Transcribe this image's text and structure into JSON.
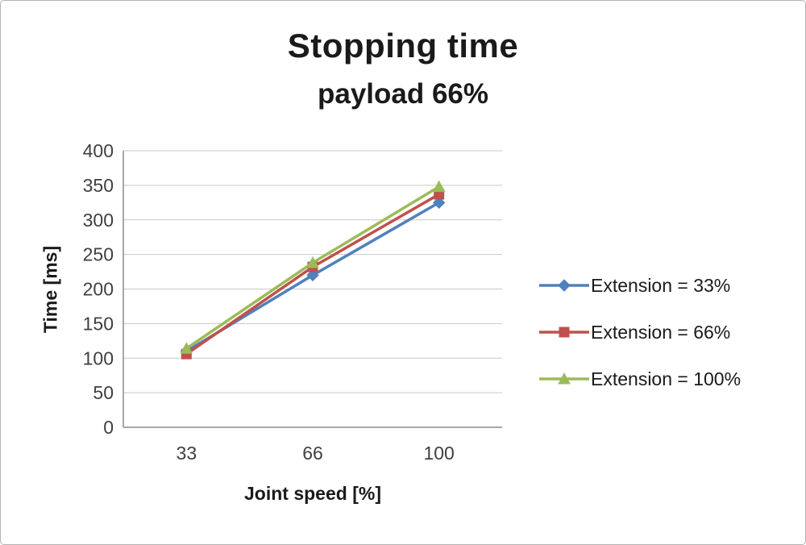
{
  "chart_data": {
    "type": "line",
    "title": "Stopping time",
    "subtitle": "payload 66%",
    "xlabel": "Joint speed [%]",
    "ylabel": "Time [ms]",
    "categories": [
      "33",
      "66",
      "100"
    ],
    "ylim": [
      0,
      400
    ],
    "ytick_step": 50,
    "grid": true,
    "legend_position": "right",
    "series": [
      {
        "name": "Extension = 33%",
        "color": "#4f81bd",
        "marker": "diamond",
        "values": [
          110,
          220,
          325
        ]
      },
      {
        "name": "Extension = 66%",
        "color": "#c0504d",
        "marker": "square",
        "values": [
          106,
          232,
          337
        ]
      },
      {
        "name": "Extension = 100%",
        "color": "#9bbb59",
        "marker": "triangle",
        "values": [
          114,
          238,
          348
        ]
      }
    ]
  }
}
